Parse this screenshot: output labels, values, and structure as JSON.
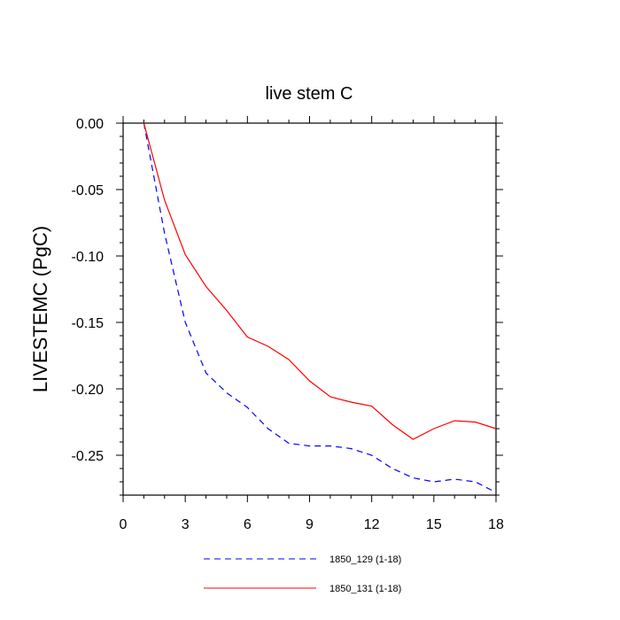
{
  "chart_data": {
    "type": "line",
    "title": "live stem C",
    "xlabel": "",
    "ylabel": "LIVESTEMC  (PgC)",
    "xlim": [
      0,
      18
    ],
    "ylim": [
      -0.28,
      0.0
    ],
    "xticks": [
      0,
      3,
      6,
      9,
      12,
      15,
      18
    ],
    "xtick_labels": [
      "0",
      "3",
      "6",
      "9",
      "12",
      "15",
      "18"
    ],
    "yticks": [
      0.0,
      -0.05,
      -0.1,
      -0.15,
      -0.2,
      -0.25
    ],
    "ytick_labels": [
      "0.00",
      "-0.05",
      "-0.10",
      "-0.15",
      "-0.20",
      "-0.25"
    ],
    "x": [
      1,
      2,
      3,
      4,
      5,
      6,
      7,
      8,
      9,
      10,
      11,
      12,
      13,
      14,
      15,
      16,
      17,
      18
    ],
    "series": [
      {
        "name": "1850_129 (1-18)",
        "color": "#0000ff",
        "style": "dashed",
        "values": [
          0.0,
          -0.083,
          -0.15,
          -0.188,
          -0.203,
          -0.214,
          -0.23,
          -0.241,
          -0.243,
          -0.243,
          -0.245,
          -0.25,
          -0.26,
          -0.267,
          -0.27,
          -0.268,
          -0.27,
          -0.278
        ]
      },
      {
        "name": "1850_131 (1-18)",
        "color": "#ff0000",
        "style": "solid",
        "values": [
          0.0,
          -0.058,
          -0.099,
          -0.123,
          -0.141,
          -0.161,
          -0.168,
          -0.178,
          -0.194,
          -0.206,
          -0.21,
          -0.213,
          -0.227,
          -0.238,
          -0.23,
          -0.224,
          -0.225,
          -0.23
        ]
      }
    ],
    "legend_position": "bottom-center"
  }
}
